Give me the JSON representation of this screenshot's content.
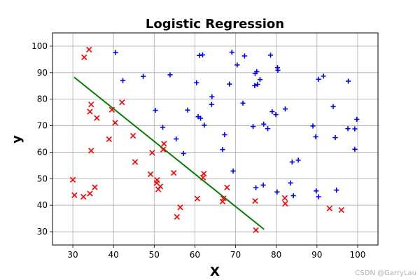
{
  "chart_data": {
    "type": "scatter",
    "title": "Logistic Regression",
    "xlabel": "X",
    "ylabel": "y",
    "xlim": [
      25,
      105
    ],
    "ylim": [
      25,
      105
    ],
    "xticks": [
      30,
      40,
      50,
      60,
      70,
      80,
      90,
      100
    ],
    "yticks": [
      30,
      40,
      50,
      60,
      70,
      80,
      90,
      100
    ],
    "grid": true,
    "series": [
      {
        "marker": "x",
        "color": "#ff0000",
        "points": [
          [
            34.0,
            98.7
          ],
          [
            32.8,
            95.8
          ],
          [
            34.5,
            78.0
          ],
          [
            34.2,
            75.3
          ],
          [
            35.9,
            72.9
          ],
          [
            42.1,
            78.8
          ],
          [
            39.6,
            76.0
          ],
          [
            40.4,
            71.1
          ],
          [
            34.5,
            60.6
          ],
          [
            38.9,
            64.9
          ],
          [
            44.8,
            66.2
          ],
          [
            30.0,
            49.6
          ],
          [
            30.4,
            43.8
          ],
          [
            32.6,
            43.2
          ],
          [
            34.2,
            44.4
          ],
          [
            35.4,
            46.8
          ],
          [
            45.3,
            56.3
          ],
          [
            49.1,
            51.7
          ],
          [
            49.5,
            59.8
          ],
          [
            50.7,
            49.5
          ],
          [
            50.6,
            48.4
          ],
          [
            51.0,
            46.0
          ],
          [
            51.5,
            47.1
          ],
          [
            52.2,
            61.0
          ],
          [
            52.4,
            63.2
          ],
          [
            54.8,
            52.2
          ],
          [
            55.6,
            35.6
          ],
          [
            56.4,
            39.2
          ],
          [
            60.6,
            42.5
          ],
          [
            62.0,
            50.4
          ],
          [
            62.2,
            51.9
          ],
          [
            66.8,
            41.4
          ],
          [
            67.0,
            42.6
          ],
          [
            67.9,
            46.7
          ],
          [
            74.8,
            41.6
          ],
          [
            75.0,
            30.6
          ],
          [
            82.1,
            42.7
          ],
          [
            82.2,
            40.6
          ],
          [
            93.1,
            38.8
          ],
          [
            96.0,
            38.2
          ]
        ]
      },
      {
        "marker": "+",
        "color": "#0000ff",
        "points": [
          [
            40.5,
            97.6
          ],
          [
            47.3,
            88.6
          ],
          [
            42.3,
            87.0
          ],
          [
            53.9,
            89.2
          ],
          [
            60.4,
            86.2
          ],
          [
            61.1,
            96.5
          ],
          [
            61.9,
            96.7
          ],
          [
            64.2,
            80.9
          ],
          [
            64.1,
            78.0
          ],
          [
            69.1,
            97.7
          ],
          [
            70.4,
            92.9
          ],
          [
            72.2,
            96.3
          ],
          [
            68.5,
            85.7
          ],
          [
            71.8,
            78.5
          ],
          [
            74.8,
            89.7
          ],
          [
            75.2,
            90.4
          ],
          [
            74.7,
            85.1
          ],
          [
            75.4,
            85.6
          ],
          [
            76.0,
            87.4
          ],
          [
            78.6,
            96.6
          ],
          [
            80.3,
            91.9
          ],
          [
            80.4,
            90.9
          ],
          [
            79.0,
            75.3
          ],
          [
            79.9,
            74.2
          ],
          [
            82.2,
            76.3
          ],
          [
            74.3,
            69.7
          ],
          [
            76.9,
            70.6
          ],
          [
            77.9,
            68.9
          ],
          [
            50.3,
            75.8
          ],
          [
            52.1,
            69.4
          ],
          [
            58.2,
            75.9
          ],
          [
            60.8,
            73.4
          ],
          [
            61.4,
            72.8
          ],
          [
            62.3,
            70.2
          ],
          [
            67.3,
            66.6
          ],
          [
            66.8,
            61.0
          ],
          [
            55.4,
            65.0
          ],
          [
            57.2,
            59.5
          ],
          [
            69.4,
            52.9
          ],
          [
            75.0,
            46.6
          ],
          [
            76.8,
            47.6
          ],
          [
            80.2,
            45.0
          ],
          [
            83.5,
            48.4
          ],
          [
            84.2,
            43.6
          ],
          [
            83.9,
            56.3
          ],
          [
            85.4,
            57.0
          ],
          [
            89.0,
            69.9
          ],
          [
            89.7,
            65.8
          ],
          [
            90.4,
            87.5
          ],
          [
            91.6,
            88.7
          ],
          [
            94.0,
            77.2
          ],
          [
            94.5,
            65.5
          ],
          [
            97.6,
            68.9
          ],
          [
            97.7,
            86.8
          ],
          [
            99.3,
            68.8
          ],
          [
            99.8,
            72.4
          ],
          [
            99.3,
            61.1
          ],
          [
            89.8,
            45.4
          ],
          [
            90.4,
            43.2
          ],
          [
            94.8,
            45.7
          ]
        ]
      }
    ],
    "line": {
      "color": "#008000",
      "points": [
        [
          30.3,
          88.3
        ],
        [
          77.0,
          30.9
        ]
      ]
    }
  },
  "watermark": "CSDN @GarryLau"
}
